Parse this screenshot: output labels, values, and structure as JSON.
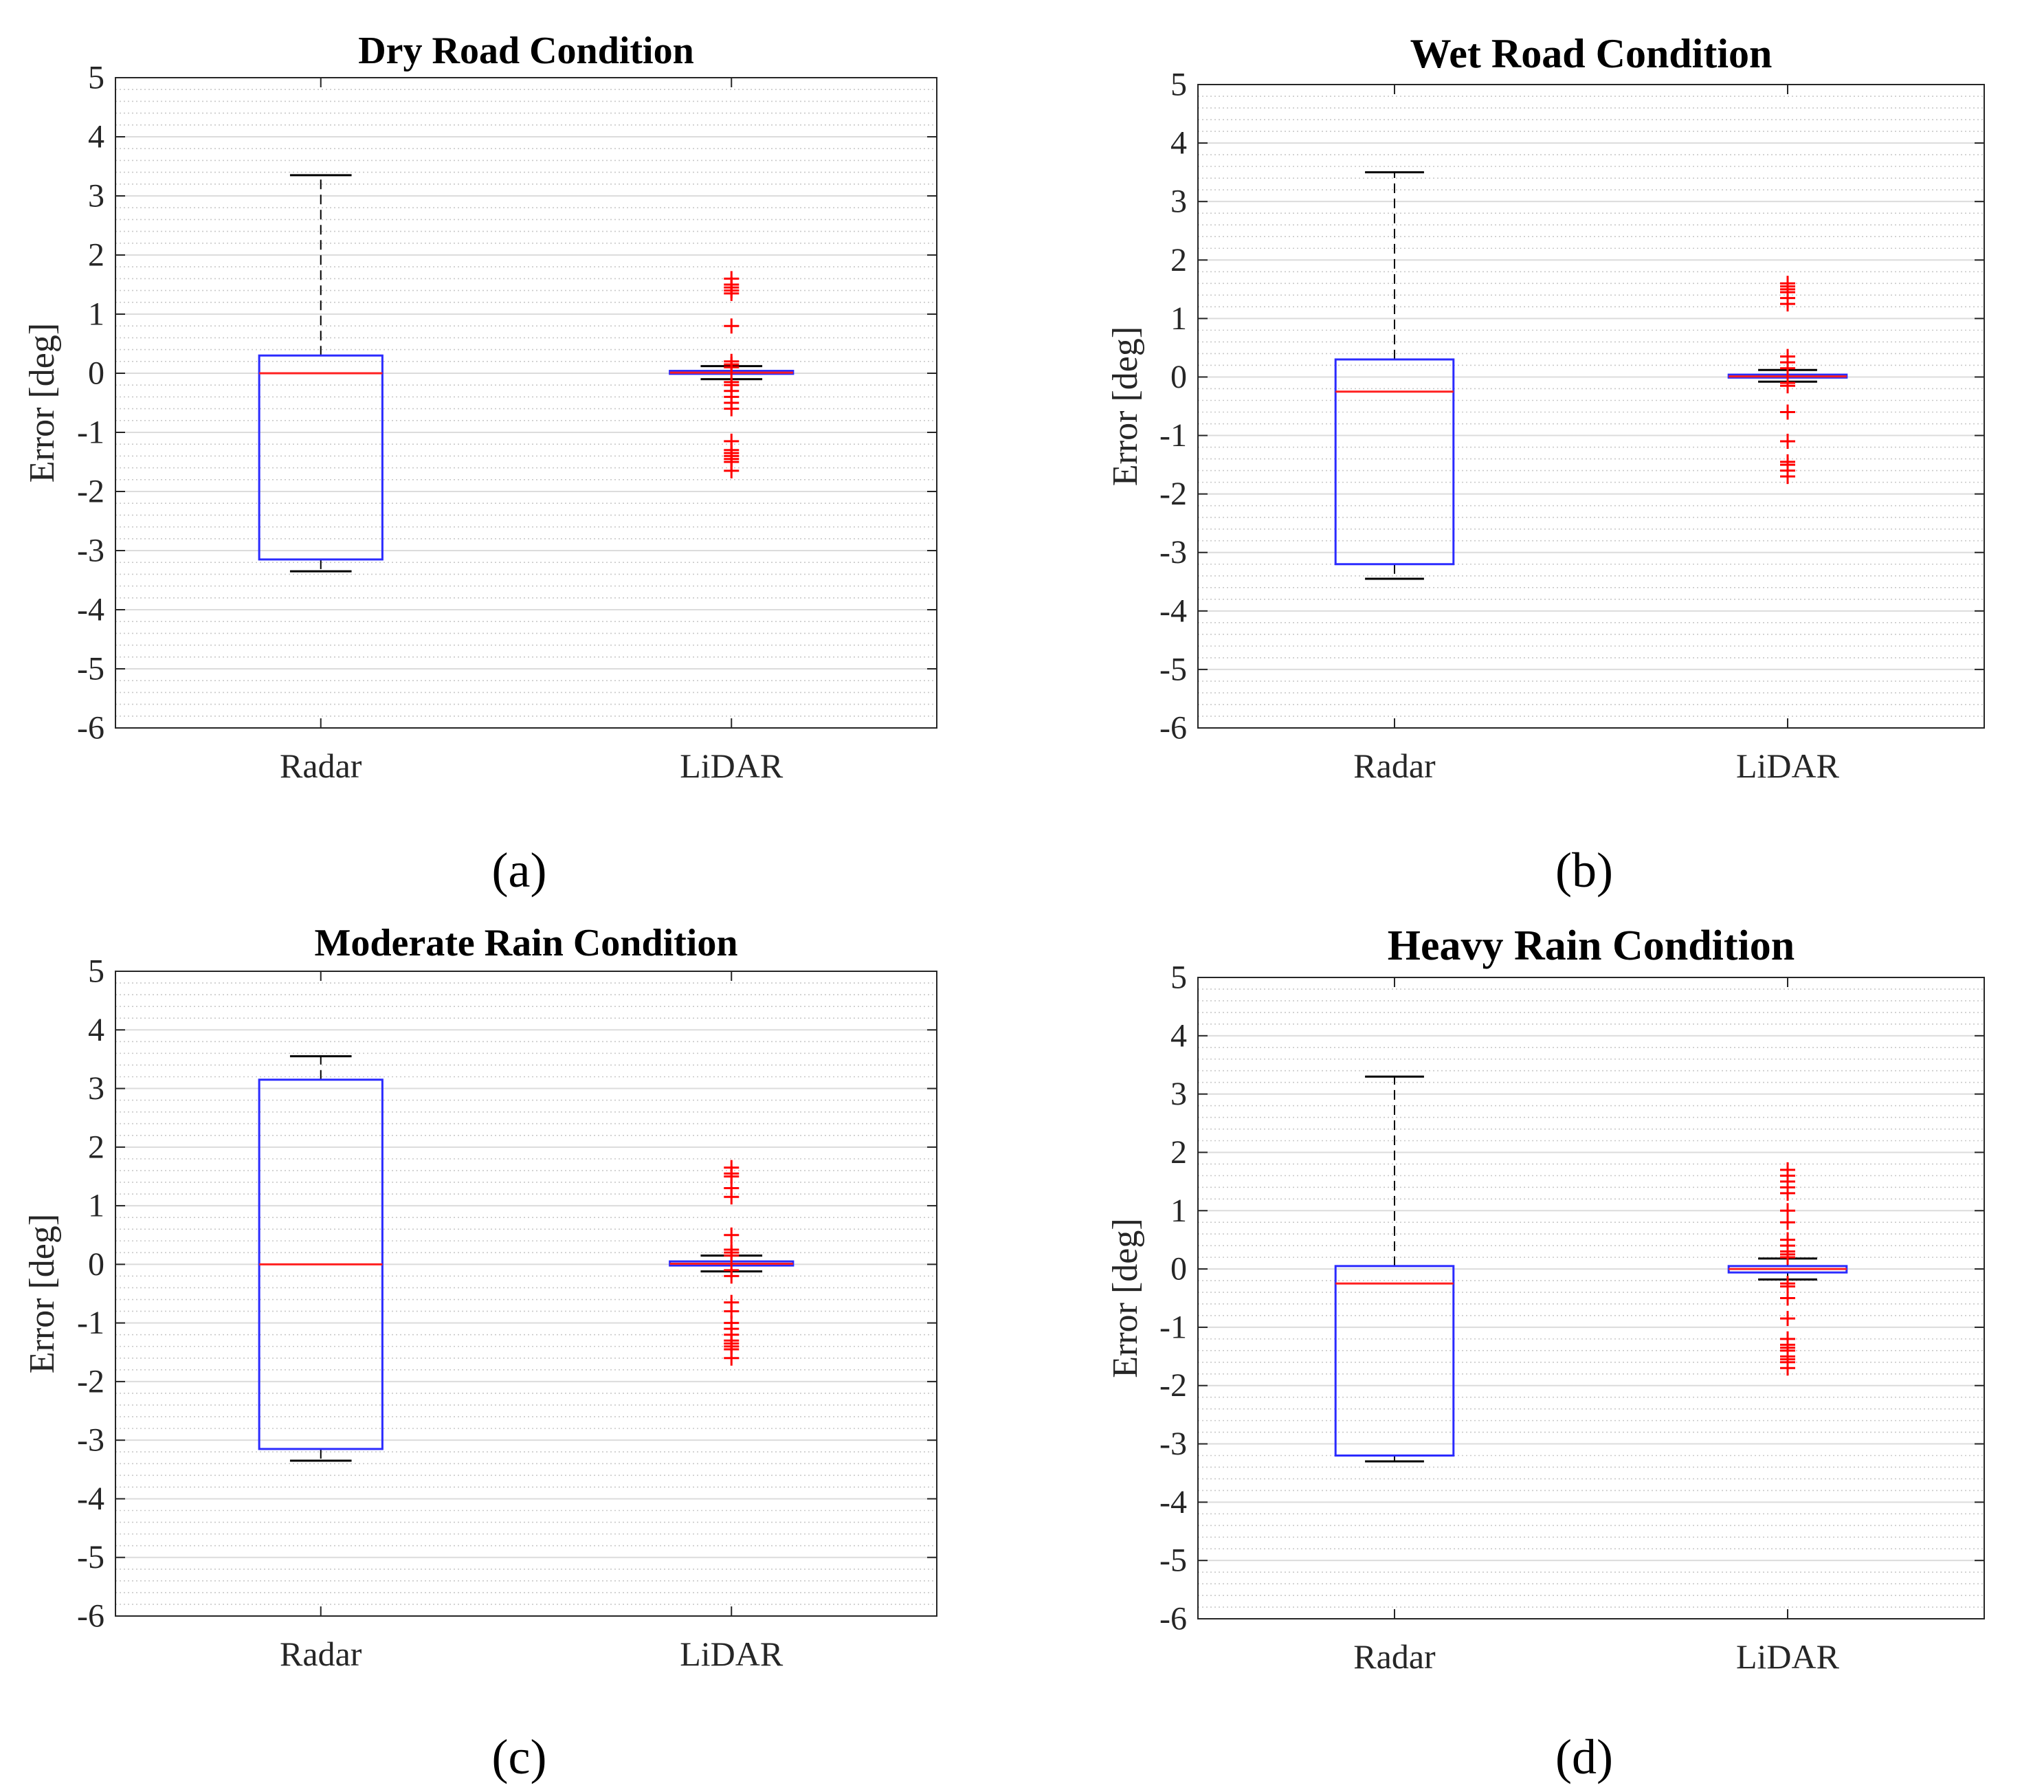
{
  "colors": {
    "box": "#2b2bff",
    "median": "#ff2020",
    "outlier": "#ff0000",
    "whisker": "#000000",
    "axes": "#262626",
    "major_grid": "#dcdcdc",
    "minor_grid": "#c9c9c9"
  },
  "chart_data": [
    {
      "type": "box",
      "panel_label": "(a)",
      "title": "Dry Road Condition",
      "ylabel": "Error [deg]",
      "xlabel": "",
      "ylim": [
        -6,
        5
      ],
      "yticks": [
        "5",
        "4",
        "3",
        "2",
        "1",
        "0",
        "-1",
        "-2",
        "-3",
        "-4",
        "-5",
        "-6"
      ],
      "grid": "major solid, minor dotted",
      "categories": [
        "Radar",
        "LiDAR"
      ],
      "boxes": [
        {
          "name": "Radar",
          "whisker_low": -3.35,
          "q1": -3.15,
          "median": 0.0,
          "q3": 0.3,
          "whisker_high": 3.35,
          "outliers": []
        },
        {
          "name": "LiDAR",
          "whisker_low": -0.1,
          "q1": -0.01,
          "median": 0.01,
          "q3": 0.04,
          "whisker_high": 0.12,
          "outliers": [
            1.6,
            1.5,
            1.45,
            1.4,
            1.35,
            0.8,
            0.2,
            0.15,
            0.1,
            -0.15,
            -0.2,
            -0.3,
            -0.4,
            -0.5,
            -0.6,
            -1.15,
            -1.3,
            -1.35,
            -1.4,
            -1.45,
            -1.5,
            -1.65
          ]
        }
      ]
    },
    {
      "type": "box",
      "panel_label": "(b)",
      "title": "Wet Road Condition",
      "ylabel": "Error [deg]",
      "xlabel": "",
      "ylim": [
        -6,
        5
      ],
      "yticks": [
        "5",
        "4",
        "3",
        "2",
        "1",
        "0",
        "-1",
        "-2",
        "-3",
        "-4",
        "-5",
        "-6"
      ],
      "grid": "major solid, minor dotted",
      "categories": [
        "Radar",
        "LiDAR"
      ],
      "boxes": [
        {
          "name": "Radar",
          "whisker_low": -3.45,
          "q1": -3.2,
          "median": -0.25,
          "q3": 0.3,
          "whisker_high": 3.5,
          "outliers": []
        },
        {
          "name": "LiDAR",
          "whisker_low": -0.08,
          "q1": -0.01,
          "median": 0.01,
          "q3": 0.04,
          "whisker_high": 0.12,
          "outliers": [
            1.6,
            1.55,
            1.5,
            1.45,
            1.35,
            1.25,
            0.35,
            0.25,
            0.15,
            -0.1,
            -0.15,
            -0.6,
            -1.1,
            -1.45,
            -1.5,
            -1.6,
            -1.7
          ]
        }
      ]
    },
    {
      "type": "box",
      "panel_label": "(c)",
      "title": "Moderate Rain Condition",
      "ylabel": "Error [deg]",
      "xlabel": "",
      "ylim": [
        -6,
        5
      ],
      "yticks": [
        "5",
        "4",
        "3",
        "2",
        "1",
        "0",
        "-1",
        "-2",
        "-3",
        "-4",
        "-5",
        "-6"
      ],
      "grid": "major solid, minor dotted",
      "categories": [
        "Radar",
        "LiDAR"
      ],
      "boxes": [
        {
          "name": "Radar",
          "whisker_low": -3.35,
          "q1": -3.15,
          "median": 0.0,
          "q3": 3.15,
          "whisker_high": 3.55,
          "outliers": []
        },
        {
          "name": "LiDAR",
          "whisker_low": -0.12,
          "q1": -0.02,
          "median": 0.01,
          "q3": 0.05,
          "whisker_high": 0.15,
          "outliers": [
            1.65,
            1.55,
            1.5,
            1.3,
            1.15,
            0.5,
            0.25,
            0.2,
            0.15,
            -0.1,
            -0.2,
            -0.65,
            -0.8,
            -1.0,
            -1.1,
            -1.2,
            -1.3,
            -1.35,
            -1.4,
            -1.45,
            -1.6
          ]
        }
      ]
    },
    {
      "type": "box",
      "panel_label": "(d)",
      "title": "Heavy Rain Condition",
      "ylabel": "Error [deg]",
      "xlabel": "",
      "ylim": [
        -6,
        5
      ],
      "yticks": [
        "5",
        "4",
        "3",
        "2",
        "1",
        "0",
        "-1",
        "-2",
        "-3",
        "-4",
        "-5",
        "-6"
      ],
      "grid": "major solid, minor dotted",
      "categories": [
        "Radar",
        "LiDAR"
      ],
      "boxes": [
        {
          "name": "Radar",
          "whisker_low": -3.3,
          "q1": -3.2,
          "median": -0.25,
          "q3": 0.05,
          "whisker_high": 3.3,
          "outliers": []
        },
        {
          "name": "LiDAR",
          "whisker_low": -0.18,
          "q1": -0.06,
          "median": 0.0,
          "q3": 0.05,
          "whisker_high": 0.18,
          "outliers": [
            1.7,
            1.6,
            1.5,
            1.4,
            1.3,
            1.0,
            0.8,
            0.5,
            0.4,
            0.3,
            0.25,
            0.2,
            -0.25,
            -0.3,
            -0.5,
            -0.85,
            -1.2,
            -1.3,
            -1.35,
            -1.4,
            -1.5,
            -1.55,
            -1.6,
            -1.7
          ]
        }
      ]
    }
  ]
}
